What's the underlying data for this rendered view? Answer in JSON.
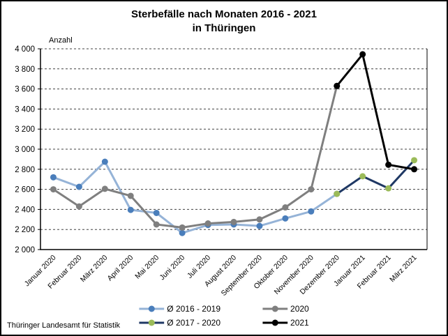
{
  "source": "Thüringer Landesamt für Statistik",
  "chart_data": {
    "type": "line",
    "title": "Sterbefälle nach Monaten 2016 - 2021 in Thüringen",
    "title_lines": [
      "Sterbefälle nach Monaten 2016 - 2021",
      "in Thüringen"
    ],
    "ylabel": "Anzahl",
    "xlabel": "",
    "ylim": [
      2000,
      4000
    ],
    "ytick_step": 200,
    "ytick_labels": [
      "2 000",
      "2 200",
      "2 400",
      "2 600",
      "2 800",
      "3 000",
      "3 200",
      "3 400",
      "3 600",
      "3 800",
      "4 000"
    ],
    "grid": "horizontal-dashed",
    "legend_position": "bottom-center",
    "categories": [
      "Januar 2020",
      "Februar 2020",
      "März 2020",
      "April 2020",
      "Mai 2020",
      "Juni 2020",
      "Juli 2020",
      "August 2020",
      "September 2020",
      "Oktober 2020",
      "November 2020",
      "Dezember 2020",
      "Januar 2021",
      "Februar 2021",
      "März 2021"
    ],
    "series": [
      {
        "name": "Ø 2016 - 2019",
        "line_color": "#95b3d7",
        "marker_color": "#4a7ebb",
        "values": [
          2720,
          2625,
          2875,
          2395,
          2365,
          2165,
          2245,
          2250,
          2235,
          2310,
          2380,
          2555,
          null,
          null,
          null
        ]
      },
      {
        "name": "2020",
        "line_color": "#7f7f7f",
        "marker_color": "#7f7f7f",
        "values": [
          2600,
          2430,
          2605,
          2535,
          2250,
          2220,
          2260,
          2275,
          2300,
          2420,
          2600,
          3630,
          null,
          null,
          null
        ]
      },
      {
        "name": "Ø 2017 - 2020",
        "line_color": "#1f3864",
        "marker_color": "#9bbb59",
        "values": [
          null,
          null,
          null,
          null,
          null,
          null,
          null,
          null,
          null,
          null,
          null,
          2555,
          2730,
          2610,
          2890
        ]
      },
      {
        "name": "2021",
        "line_color": "#000000",
        "marker_color": "#000000",
        "values": [
          null,
          null,
          null,
          null,
          null,
          null,
          null,
          null,
          null,
          null,
          null,
          3630,
          3945,
          2845,
          2800
        ]
      }
    ]
  }
}
